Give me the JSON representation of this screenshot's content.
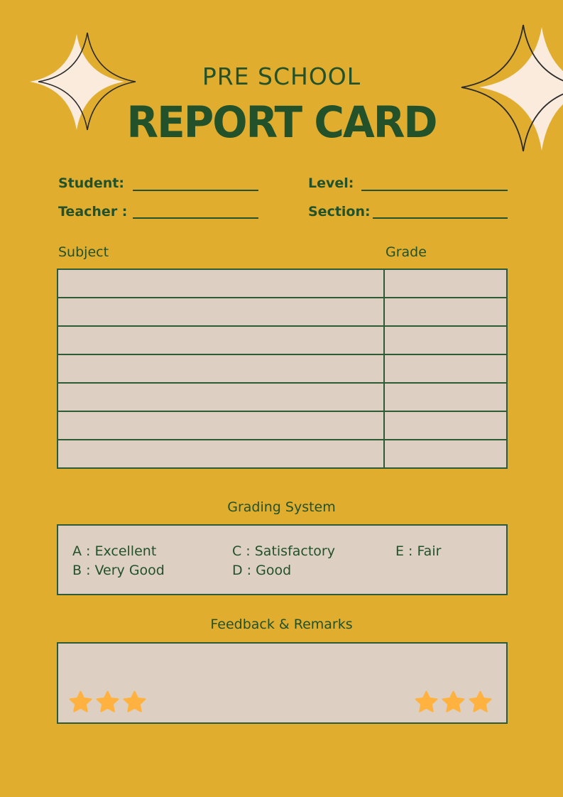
{
  "header": {
    "subtitle": "PRE SCHOOL",
    "title": "REPORT CARD"
  },
  "fields": {
    "student_label": "Student:",
    "teacher_label": "Teacher :",
    "level_label": "Level:",
    "section_label": "Section:"
  },
  "table": {
    "subject_header": "Subject",
    "grade_header": "Grade",
    "rows": [
      [
        "",
        ""
      ],
      [
        "",
        ""
      ],
      [
        "",
        ""
      ],
      [
        "",
        ""
      ],
      [
        "",
        ""
      ],
      [
        "",
        ""
      ],
      [
        "",
        ""
      ]
    ]
  },
  "grading": {
    "title": "Grading System",
    "items": [
      "A : Excellent",
      "B : Very Good",
      "C : Satisfactory",
      "D : Good",
      "E : Fair"
    ]
  },
  "feedback": {
    "title": "Feedback & Remarks",
    "stars_left": 3,
    "stars_right": 3
  },
  "colors": {
    "background": "#E1AD2E",
    "text": "#22512A",
    "panel": "#DDD0C3",
    "sparkle": "#FBEBDD",
    "star": "#FFB23F"
  }
}
